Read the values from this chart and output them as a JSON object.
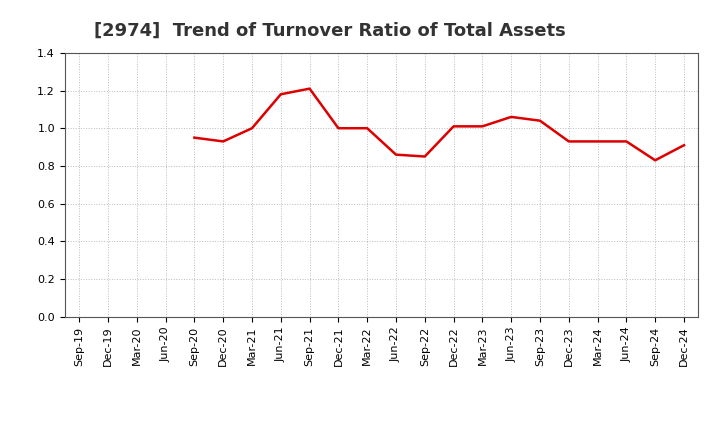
{
  "title": "[2974]  Trend of Turnover Ratio of Total Assets",
  "x_labels": [
    "Sep-19",
    "Dec-19",
    "Mar-20",
    "Jun-20",
    "Sep-20",
    "Dec-20",
    "Mar-21",
    "Jun-21",
    "Sep-21",
    "Dec-21",
    "Mar-22",
    "Jun-22",
    "Sep-22",
    "Dec-22",
    "Mar-23",
    "Jun-23",
    "Sep-23",
    "Dec-23",
    "Mar-24",
    "Jun-24",
    "Sep-24",
    "Dec-24"
  ],
  "y_values": [
    null,
    null,
    null,
    null,
    0.95,
    0.93,
    1.0,
    1.18,
    1.21,
    1.0,
    1.0,
    0.86,
    0.85,
    1.01,
    1.01,
    1.06,
    1.04,
    0.93,
    0.93,
    0.93,
    0.83,
    0.91
  ],
  "ylim": [
    0.0,
    1.4
  ],
  "yticks": [
    0.0,
    0.2,
    0.4,
    0.6,
    0.8,
    1.0,
    1.2,
    1.4
  ],
  "line_color": "#dd0000",
  "line_width": 1.8,
  "background_color": "#ffffff",
  "grid_color": "#bbbbbb",
  "title_fontsize": 13,
  "tick_fontsize": 8
}
